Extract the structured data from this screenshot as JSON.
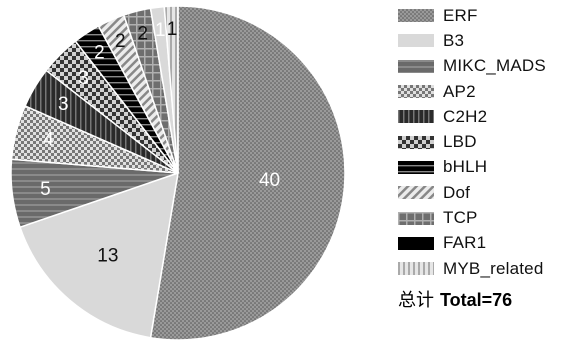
{
  "chart_data": {
    "type": "pie",
    "categories": [
      "ERF",
      "B3",
      "MIKC_MADS",
      "AP2",
      "C2H2",
      "LBD",
      "bHLH",
      "Dof",
      "TCP",
      "FAR1",
      "MYB_related"
    ],
    "values": [
      40,
      13,
      5,
      4,
      3,
      3,
      2,
      2,
      2,
      1,
      1
    ],
    "data_labels": [
      "40",
      "13",
      "5",
      "4",
      "3",
      "3",
      "2",
      "2",
      "2",
      "1",
      "1"
    ],
    "legend_position": "right",
    "total_label_cn": "总计",
    "total_label": "Total=76",
    "colors": [
      "#8c8c8c",
      "#d9d9d9",
      "#707070",
      "#a8a8a8",
      "#3c3c3c",
      "#6e6e6e",
      "#141414",
      "#b4b4b4",
      "#8a8a8a",
      "#000000",
      "#c8c8c8"
    ],
    "patterns": [
      "dots",
      "solid",
      "hstripes",
      "checker",
      "vstripes",
      "bigchecker",
      "hbars",
      "diagonal",
      "grid",
      "solid",
      "vlines"
    ]
  }
}
